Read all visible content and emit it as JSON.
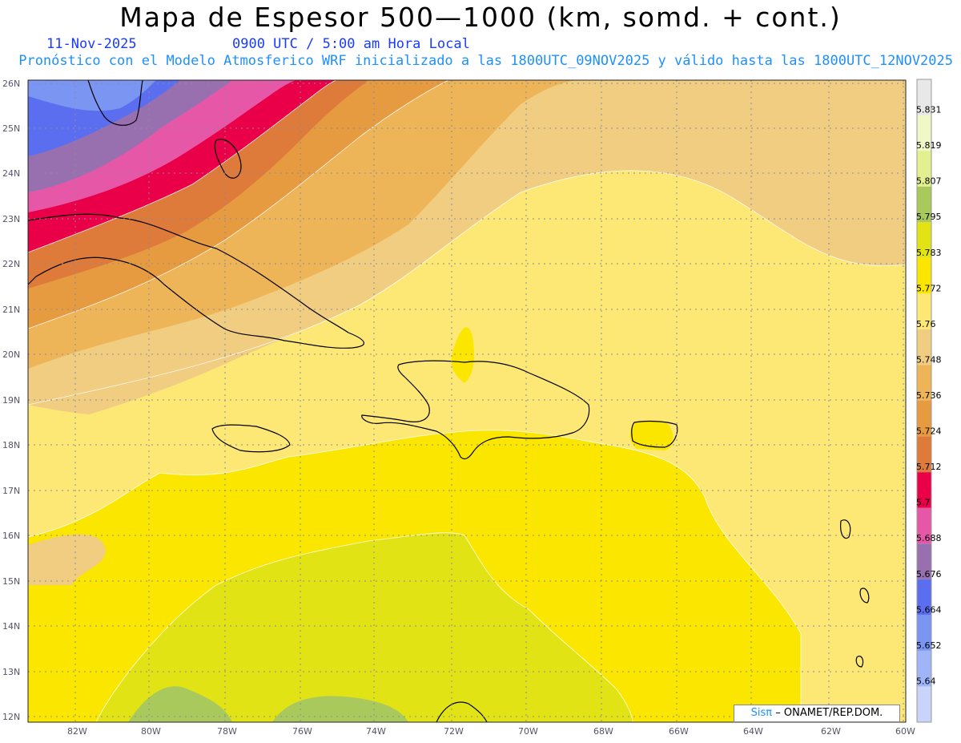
{
  "header": {
    "title": "Mapa de Espesor 500—1000 (km, somd. + cont.)",
    "date": "11-Nov-2025",
    "time": "0900 UTC / 5:00 am Hora Local",
    "subtitle": "Pronóstico con el Modelo Atmosferico WRF inicializado a las 1800UTC_09NOV2025 y válido hasta las  1800UTC_12NOV2025"
  },
  "colors": {
    "title": "#000000",
    "date_time": "#1a3cff",
    "subtitle": "#1e90ff",
    "coast": "#000000",
    "grid": "#8a8a9a"
  },
  "map": {
    "lat_labels": [
      "26N",
      "25N",
      "24N",
      "23N",
      "22N",
      "21N",
      "20N",
      "19N",
      "18N",
      "17N",
      "16N",
      "15N",
      "14N",
      "13N",
      "12N"
    ],
    "lon_labels": [
      "82W",
      "80W",
      "78W",
      "76W",
      "74W",
      "72W",
      "70W",
      "68W",
      "66W",
      "64W",
      "62W",
      "60W"
    ]
  },
  "colorbar": {
    "colors": [
      "#c8d4fa",
      "#a0b4f8",
      "#7a96f2",
      "#5c6ef0",
      "#9870b0",
      "#e657a8",
      "#ea0048",
      "#de7a3a",
      "#e69b40",
      "#eeb458",
      "#f0cd80",
      "#fde876",
      "#fbe600",
      "#e2e314",
      "#a9c95c",
      "#e2f090",
      "#f0f8c8",
      "#e8e8e8"
    ],
    "labels": [
      "5.64",
      "5.652",
      "5.664",
      "5.676",
      "5.688",
      "5.7",
      "5.712",
      "5.724",
      "5.736",
      "5.748",
      "5.76",
      "5.772",
      "5.783",
      "5.795",
      "5.807",
      "5.819",
      "5.831"
    ]
  },
  "credit": {
    "sis": "Sisπ",
    "text": "– ONAMET/REP.DOM."
  }
}
